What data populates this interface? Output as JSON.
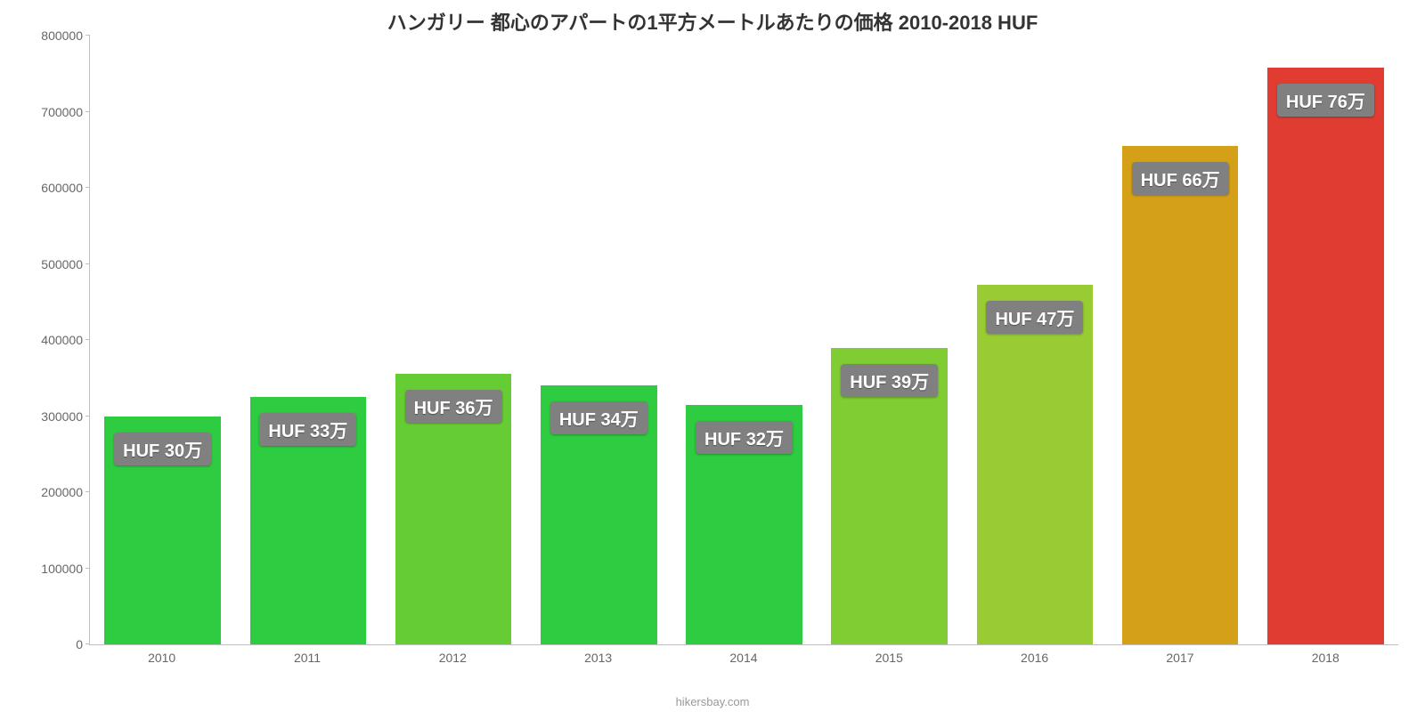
{
  "chart": {
    "type": "bar",
    "title": "ハンガリー 都心のアパートの1平方メートルあたりの価格 2010-2018 HUF",
    "title_fontsize": 22,
    "title_color": "#333333",
    "background_color": "#ffffff",
    "axis_color": "#c0c0c0",
    "tick_label_color": "#666666",
    "tick_fontsize": 14,
    "categories": [
      "2010",
      "2011",
      "2012",
      "2013",
      "2014",
      "2015",
      "2016",
      "2017",
      "2018"
    ],
    "values": [
      300000,
      325000,
      355000,
      340000,
      315000,
      390000,
      472000,
      655000,
      758000
    ],
    "value_labels": [
      "HUF 30万",
      "HUF 33万",
      "HUF 36万",
      "HUF 34万",
      "HUF 32万",
      "HUF 39万",
      "HUF 47万",
      "HUF 66万",
      "HUF 76万"
    ],
    "bar_colors": [
      "#2ecc40",
      "#2ecc40",
      "#66cc33",
      "#2ecc40",
      "#2ecc40",
      "#80cc33",
      "#99cc33",
      "#d4a017",
      "#e03c31"
    ],
    "value_label_bg": "#808080",
    "value_label_text_color": "#ffffff",
    "value_label_fontsize": 20,
    "ylim": [
      0,
      800000
    ],
    "ytick_step": 100000,
    "yticks": [
      "0",
      "100000",
      "200000",
      "300000",
      "400000",
      "500000",
      "600000",
      "700000",
      "800000"
    ],
    "bar_width_pct": 80,
    "attribution": "hikersbay.com",
    "attribution_color": "#999999",
    "attribution_fontsize": 13
  }
}
